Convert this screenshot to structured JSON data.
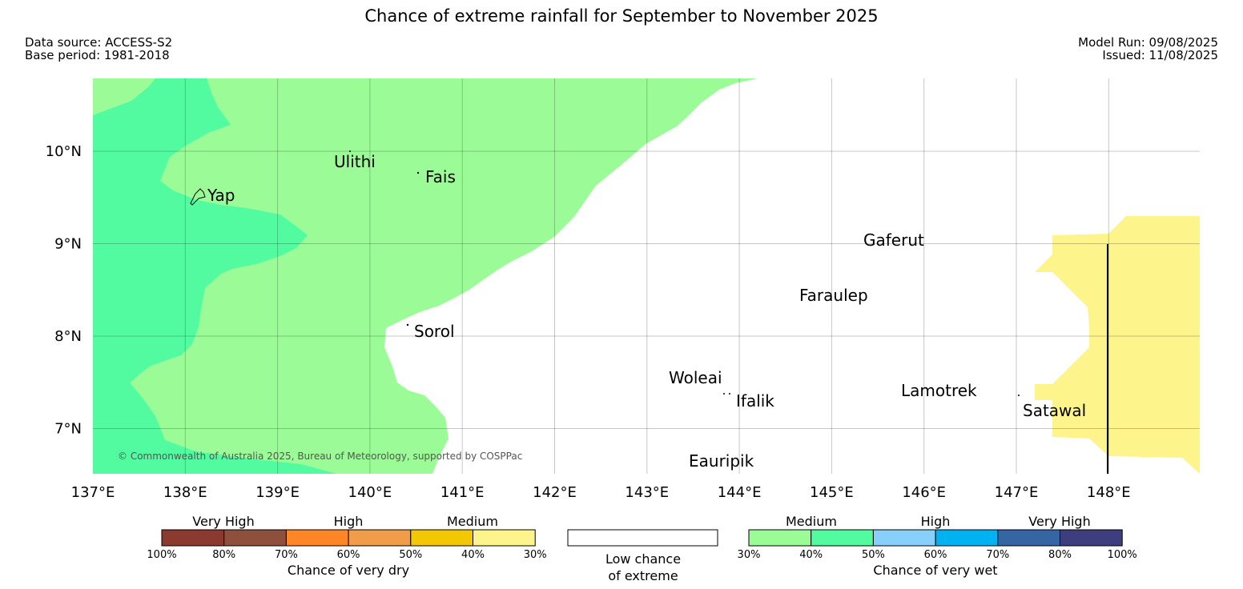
{
  "title": "Chance of extreme rainfall for September to November 2025",
  "meta": {
    "data_source": "Data source: ACCESS-S2",
    "base_period": "Base period: 1981-2018",
    "model_run": "Model Run: 09/08/2025",
    "issued": "Issued: 11/08/2025"
  },
  "copyright": "© Commonwealth of Australia 2025, Bureau of Meteorology, supported by COSPPac",
  "map": {
    "lon_range": [
      137,
      149
    ],
    "lat_range": [
      6.5,
      10.8
    ],
    "x_ticks": [
      "137°E",
      "138°E",
      "139°E",
      "140°E",
      "141°E",
      "142°E",
      "143°E",
      "144°E",
      "145°E",
      "146°E",
      "147°E",
      "148°E"
    ],
    "y_ticks": [
      "10°N",
      "9°N",
      "8°N",
      "7°N"
    ],
    "places": [
      {
        "name": "Ulithi",
        "lon": 139.8,
        "lat": 10.0
      },
      {
        "name": "Fais",
        "lon": 140.5,
        "lat": 9.76
      },
      {
        "name": "Yap",
        "lon": 138.1,
        "lat": 9.5
      },
      {
        "name": "Gaferut",
        "lon": 145.4,
        "lat": 9.0
      },
      {
        "name": "Faraulep",
        "lon": 144.7,
        "lat": 8.4
      },
      {
        "name": "Sorol",
        "lon": 140.4,
        "lat": 8.1
      },
      {
        "name": "Woleai",
        "lon": 143.9,
        "lat": 7.35
      },
      {
        "name": "Ifalik",
        "lon": 144.4,
        "lat": 7.25
      },
      {
        "name": "Lamotrek",
        "lon": 146.3,
        "lat": 7.5
      },
      {
        "name": "Satawal",
        "lon": 147.0,
        "lat": 7.35
      },
      {
        "name": "Eauripik",
        "lon": 143.1,
        "lat": 6.7
      }
    ],
    "zones": [
      {
        "category": "Medium wet (30%-40%)",
        "color": "#9bfc97"
      },
      {
        "category": "Medium wet (40%-50%)",
        "color": "#52fba0"
      },
      {
        "category": "Low chance of extreme",
        "color": "#ffffff"
      },
      {
        "category": "Medium dry (30%-40%)",
        "color": "#fdf58c"
      }
    ]
  },
  "legend_dry": {
    "group_labels": [
      "Very High",
      "High",
      "Medium"
    ],
    "colors": [
      "#8b3a30",
      "#8e503d",
      "#fe8627",
      "#f09c4a",
      "#f2c804",
      "#fdf58c"
    ],
    "ticks": [
      "100%",
      "80%",
      "70%",
      "60%",
      "50%",
      "40%",
      "30%"
    ],
    "caption": "Chance of very dry"
  },
  "legend_low": {
    "line1": "Low chance",
    "line2": "of extreme"
  },
  "legend_wet": {
    "group_labels": [
      "Medium",
      "High",
      "Very High"
    ],
    "colors": [
      "#9bfc97",
      "#52fba0",
      "#89cffb",
      "#00b2f0",
      "#3565a2",
      "#3e3d7e"
    ],
    "ticks": [
      "30%",
      "40%",
      "50%",
      "60%",
      "70%",
      "80%",
      "100%"
    ],
    "caption": "Chance of very wet"
  }
}
